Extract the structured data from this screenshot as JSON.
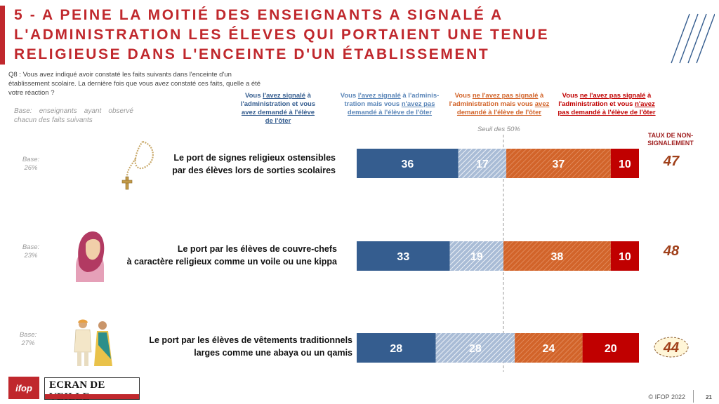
{
  "title": "5 - A PEINE LA MOITIÉ DES ENSEIGNANTS A SIGNALÉ A L'ADMINISTRATION LES ÉLEVES QUI PORTAIENT UNE TENUE RELIGIEUSE DANS L'ENCEINTE D'UN ÉTABLISSEMENT",
  "question": "Q8 : Vous avez indiqué avoir constaté les faits suivants dans l'enceinte d'un établissement scolaire. La dernière fois que vous avez constaté ces faits, quelle a été votre réaction ?",
  "base_note_line1": "Base: enseignants ayant observé",
  "base_note_line2": "chacun des faits suivants",
  "legend": [
    {
      "pre": "Vous ",
      "u1": "l'avez signalé",
      "mid": " à l'administration et vous ",
      "u2": "avez demandé à l'élève de l'ôter",
      "post": ""
    },
    {
      "pre": "Vous ",
      "u1": "l'avez signalé",
      "mid": " à l'adminis-tration mais vous ",
      "u2": "n'avez pas demandé à l'élève de l'ôter",
      "post": ""
    },
    {
      "pre": "Vous ",
      "u1": "ne l'avez pas signalé",
      "mid": " à l'administration mais vous ",
      "u2": "avez demandé à l'élève de l'ôter",
      "post": ""
    },
    {
      "pre": "Vous ",
      "u1": "ne l'avez pas signalé",
      "mid": " à l'administration et vous ",
      "u2": "n'avez pas demandé à l'élève de l'ôter",
      "post": ""
    }
  ],
  "seuil_label": "Seuil des 50%",
  "taux_header": "TAUX DE NON-SIGNALEMENT",
  "colors": {
    "title": "#c0282d",
    "series1": "#355d8f",
    "series2": "#7a97bd",
    "series3": "#d2642a",
    "series4": "#c00000",
    "legend1": "#355d8f",
    "legend2": "#5b86b8",
    "legend3": "#d2642a",
    "legend4": "#c00000"
  },
  "chart_data": {
    "type": "bar",
    "orientation": "horizontal",
    "stacked": true,
    "xlim": [
      0,
      100
    ],
    "threshold": 50,
    "categories": [
      "Le port de signes religieux ostensibles par des élèves lors de sorties scolaires",
      "Le port par les élèves de couvre-chefs à caractère religieux comme un voile ou une kippa",
      "Le port par les élèves de vêtements traditionnels larges comme une abaya ou un qamis"
    ],
    "series": [
      {
        "values": [
          36,
          33,
          28
        ]
      },
      {
        "values": [
          17,
          19,
          28
        ]
      },
      {
        "values": [
          37,
          38,
          24
        ]
      },
      {
        "values": [
          10,
          10,
          20
        ]
      }
    ],
    "taux_non_signalement": [
      47,
      48,
      44
    ]
  },
  "rows": [
    {
      "base_label": "Base:",
      "base_value": "26%",
      "label_line1": "Le port de signes religieux ostensibles",
      "label_line2": "par des élèves lors de sorties scolaires",
      "icon": "rosary-icon"
    },
    {
      "base_label": "Base:",
      "base_value": "23%",
      "label_line1": "Le port par les élèves de couvre-chefs",
      "label_line2": "à caractère religieux comme un voile ou une kippa",
      "icon": "hijab-woman-icon"
    },
    {
      "base_label": "Base:",
      "base_value": "27%",
      "label_line1": "Le port par les élèves de vêtements traditionnels",
      "label_line2": "larges comme une abaya ou un qamis",
      "icon": "traditional-clothing-couple-icon"
    }
  ],
  "footer": {
    "copyright": "© IFOP 2022",
    "page": "21",
    "logo_ifop": "ifop",
    "logo_ecran": "ECRAN DE VEILLE"
  }
}
